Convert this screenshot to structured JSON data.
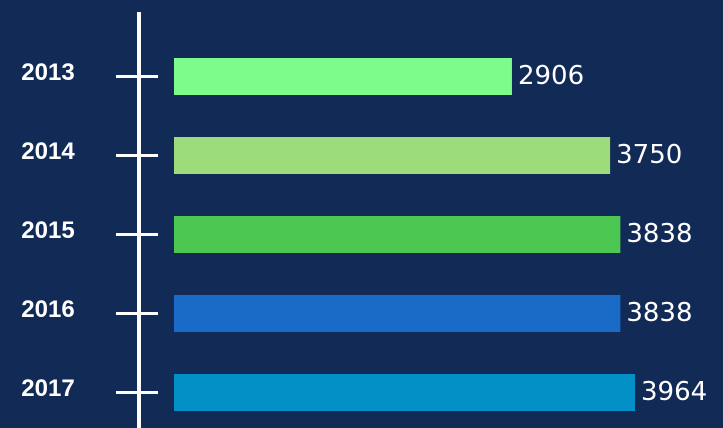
{
  "chart_data": {
    "type": "bar",
    "orientation": "horizontal",
    "categories": [
      "2013",
      "2014",
      "2015",
      "2016",
      "2017"
    ],
    "values": [
      2906,
      3750,
      3838,
      3838,
      3964
    ],
    "colors": [
      "#7dfc8b",
      "#9cdc7a",
      "#4cc752",
      "#1a6bc8",
      "#0390c6"
    ]
  }
}
